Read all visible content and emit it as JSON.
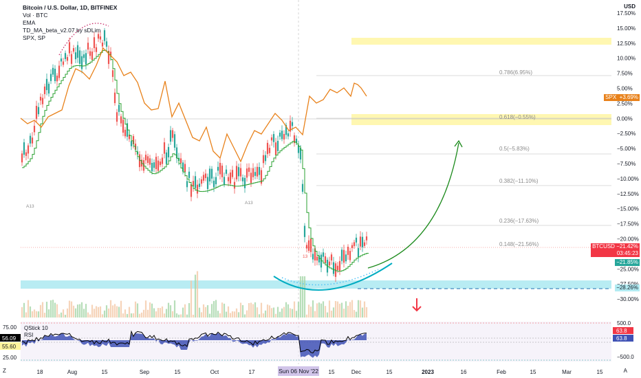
{
  "legend": {
    "title": "Bitcoin / U.S. Dollar, 1D, BITFINEX",
    "vol": "Vol · BTC",
    "ema": "EMA",
    "td": "TD_MA_beta_v2.07 by sDLim",
    "spx": "SPX, SP"
  },
  "axis": {
    "currency": "USD",
    "y_ticks": [
      "17.50%",
      "15.00%",
      "12.50%",
      "10.00%",
      "7.50%",
      "5.00%",
      "2.50%",
      "0.00%",
      "−2.50%",
      "−5.00%",
      "−7.50%",
      "−10.00%",
      "−12.50%",
      "−15.00%",
      "−17.50%",
      "−20.00%",
      "−22.50%",
      "−25.00%",
      "−27.50%",
      "−30.00%"
    ],
    "x_ticks": [
      "18",
      "Aug",
      "15",
      "Sep",
      "15",
      "Oct",
      "17",
      "Nov",
      "15",
      "Dec",
      "15",
      "2023",
      "16",
      "Feb",
      "15",
      "Mar",
      "15"
    ],
    "cursor_date": "Sun 06 Nov '22",
    "corner_left": "Z",
    "corner_right": "A"
  },
  "fib_levels": [
    {
      "label": "0.786(6.95%)"
    },
    {
      "label": "0.618(−0.55%)"
    },
    {
      "label": "0.5(−5.83%)"
    },
    {
      "label": "0.382(−11.10%)"
    },
    {
      "label": "0.236(−17.63%)"
    },
    {
      "label": "0.148(−21.56%)"
    }
  ],
  "price_tags": {
    "spx_name": "SPX",
    "spx_value": "+3.69%",
    "btc_name": "BTCUSD",
    "btc_value": "−21.42%",
    "btc_timer": "03:45:23",
    "green_value": "−21.85%",
    "cyan_value": "−28.26%"
  },
  "sub_panel": {
    "qstick_label": "QStick",
    "qstick_value": "10",
    "rsi_label": "RSI",
    "left_ticks": [
      "75.00",
      "56.09",
      "55.60",
      "25.00"
    ],
    "right_ticks": [
      "500.0",
      "63.8",
      "63.8",
      "−500.0"
    ]
  },
  "annotations": {
    "td_counts": [
      "A13",
      "A13",
      "13"
    ]
  },
  "colors": {
    "bull": "#26a69a",
    "bear": "#ef5350",
    "spx": "#e8811a",
    "ema": "#2aa130",
    "cyan": "#00bcd4",
    "yellow": "#fff59d",
    "arrow_green": "#1b8a1b",
    "arrow_red": "#f23645"
  }
}
